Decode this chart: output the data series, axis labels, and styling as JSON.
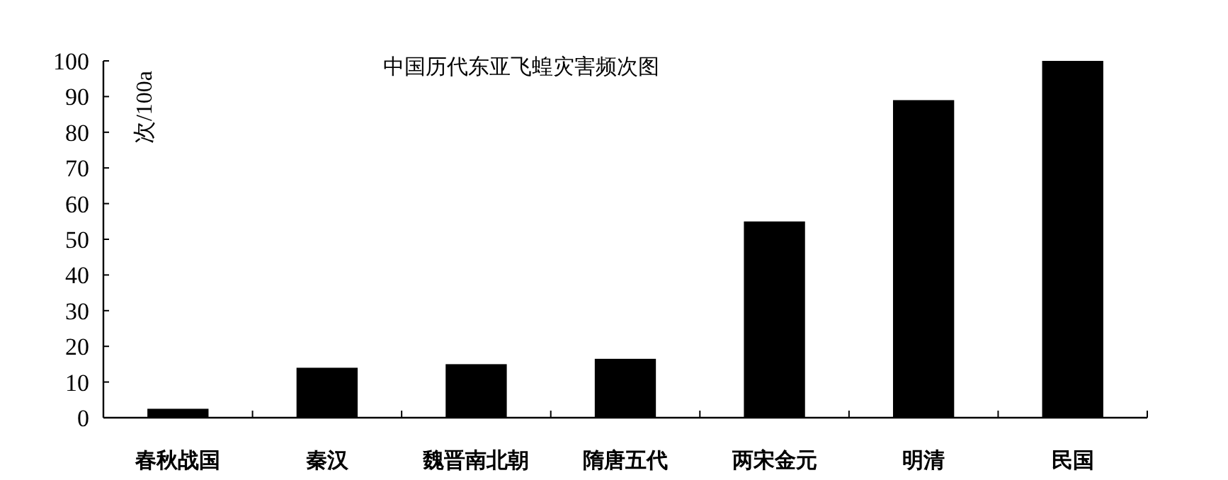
{
  "chart_data": {
    "type": "bar",
    "title": "中国历代东亚飞蝗灾害频次图",
    "ylabel": "次/100a",
    "categories": [
      "春秋战国",
      "秦汉",
      "魏晋南北朝",
      "隋唐五代",
      "两宋金元",
      "明清",
      "民国"
    ],
    "values": [
      2.5,
      14,
      15,
      16.5,
      55,
      89,
      100
    ],
    "color": "#000000",
    "ylim": [
      0,
      100
    ],
    "yticks": [
      0,
      10,
      20,
      30,
      40,
      50,
      60,
      70,
      80,
      90,
      100
    ]
  }
}
